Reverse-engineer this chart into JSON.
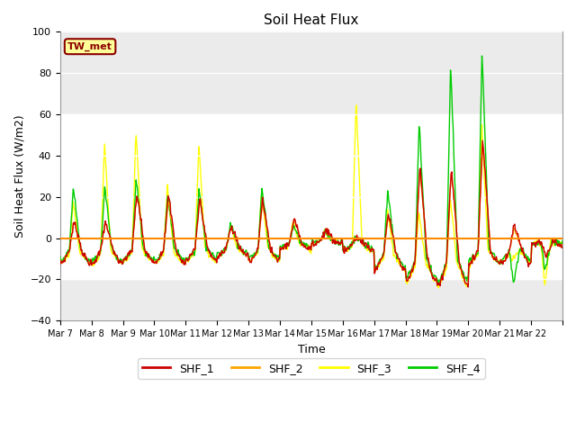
{
  "title": "Soil Heat Flux",
  "xlabel": "Time",
  "ylabel": "Soil Heat Flux (W/m2)",
  "ylim": [
    -40,
    100
  ],
  "annotation_text": "TW_met",
  "annotation_color": "#8B0000",
  "annotation_bg": "#FFFF99",
  "hline_y": 0,
  "hline_color": "#FF8C00",
  "ax_facecolor": "#F0F0F0",
  "series_colors": {
    "SHF_1": "#CC0000",
    "SHF_2": "#FFA500",
    "SHF_3": "#FFFF00",
    "SHF_4": "#00CC00"
  },
  "xtick_labels": [
    "Mar 7",
    "Mar 8",
    "Mar 9",
    "Mar 10",
    "Mar 11",
    "Mar 12",
    "Mar 13",
    "Mar 14",
    "Mar 15",
    "Mar 16",
    "Mar 17",
    "Mar 18",
    "Mar 19",
    "Mar 20",
    "Mar 21",
    "Mar 22"
  ],
  "n_days": 16,
  "pts_per_day": 48
}
